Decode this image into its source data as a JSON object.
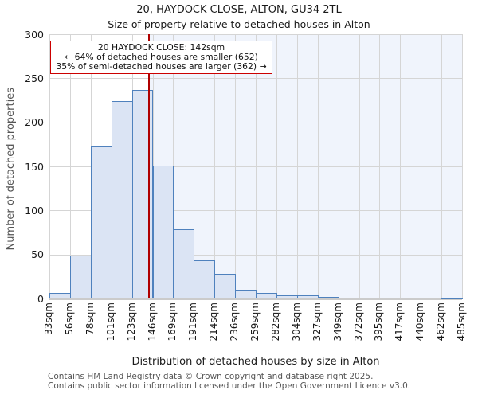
{
  "title": "20, HAYDOCK CLOSE, ALTON, GU34 2TL",
  "subtitle": "Size of property relative to detached houses in Alton",
  "annotation": {
    "line1": "20 HAYDOCK CLOSE: 142sqm",
    "line2": "← 64% of detached houses are smaller (652)",
    "line3": "35% of semi-detached houses are larger (362) →",
    "border_color": "#cc0000"
  },
  "chart_data": {
    "type": "bar",
    "title": "20, HAYDOCK CLOSE, ALTON, GU34 2TL",
    "subtitle": "Size of property relative to detached houses in Alton",
    "xlabel": "Distribution of detached houses by size in Alton",
    "ylabel": "Number of detached properties",
    "categories": [
      "33sqm",
      "56sqm",
      "78sqm",
      "101sqm",
      "123sqm",
      "146sqm",
      "169sqm",
      "191sqm",
      "214sqm",
      "236sqm",
      "259sqm",
      "282sqm",
      "304sqm",
      "327sqm",
      "349sqm",
      "372sqm",
      "395sqm",
      "417sqm",
      "440sqm",
      "462sqm",
      "485sqm"
    ],
    "bin_edges_sqm": [
      33,
      56,
      78,
      101,
      123,
      146,
      169,
      191,
      214,
      236,
      259,
      282,
      304,
      327,
      349,
      372,
      395,
      417,
      440,
      462,
      485
    ],
    "values": [
      6,
      49,
      173,
      224,
      237,
      151,
      79,
      43,
      28,
      10,
      6,
      4,
      4,
      2,
      0,
      0,
      0,
      0,
      0,
      1
    ],
    "ylim": [
      0,
      300
    ],
    "yticks": [
      0,
      50,
      100,
      150,
      200,
      250,
      300
    ],
    "grid": true,
    "legend": null,
    "marker": {
      "sqm": 142,
      "label": "142sqm",
      "color": "#b00000"
    },
    "shade_right_of_marker": true,
    "colors": {
      "bar_fill": "#dbe4f4",
      "bar_border": "#4f81bd",
      "shade": "#f0f4fc",
      "grid": "#d5d5d5",
      "baseline": "#cbcbcb"
    }
  },
  "footer": {
    "line1": "Contains HM Land Registry data © Crown copyright and database right 2025.",
    "line2": "Contains public sector information licensed under the Open Government Licence v3.0."
  }
}
